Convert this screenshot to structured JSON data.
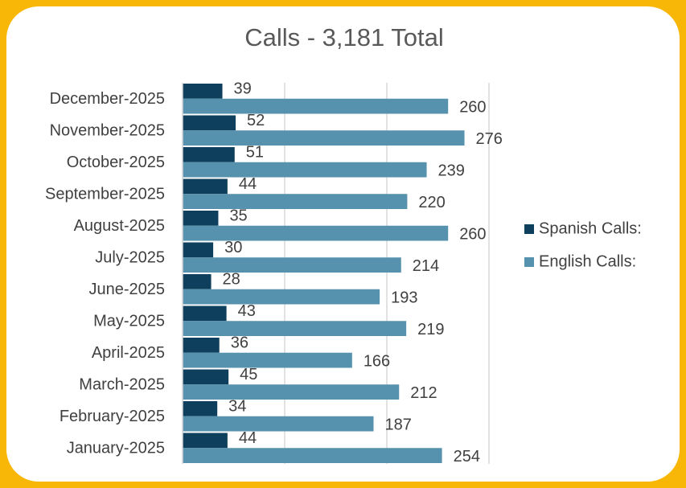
{
  "chart_data": {
    "type": "bar",
    "orientation": "horizontal",
    "title": "Calls - 3,181 Total",
    "categories": [
      "January-2025",
      "February-2025",
      "March-2025",
      "April-2025",
      "May-2025",
      "June-2025",
      "July-2025",
      "August-2025",
      "September-2025",
      "October-2025",
      "November-2025",
      "December-2025"
    ],
    "series": [
      {
        "name": "Spanish Calls:",
        "color": "#0e3f5c",
        "values": [
          44,
          34,
          45,
          36,
          43,
          28,
          30,
          35,
          44,
          51,
          52,
          39
        ]
      },
      {
        "name": "English Calls:",
        "color": "#5691ae",
        "values": [
          254,
          187,
          212,
          166,
          219,
          193,
          214,
          260,
          220,
          239,
          276,
          260
        ]
      }
    ],
    "xlim": [
      0,
      300
    ],
    "xticks": [
      0,
      100,
      200,
      300
    ],
    "grid": true,
    "legend": "right"
  }
}
